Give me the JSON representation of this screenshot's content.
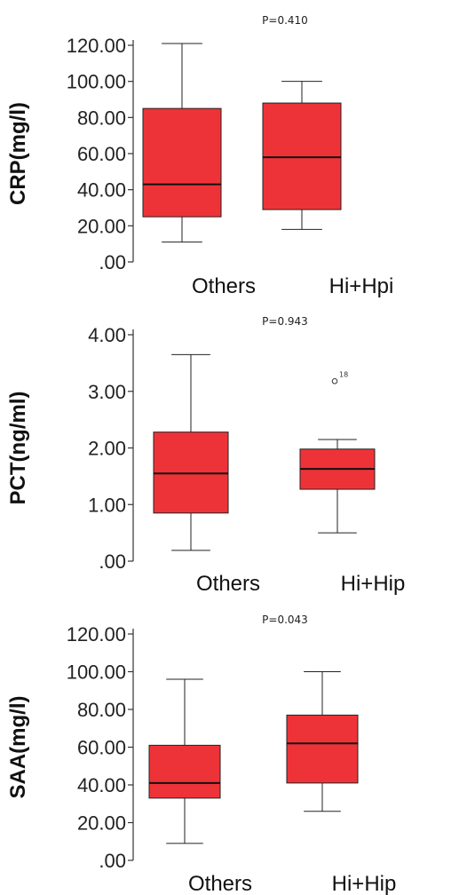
{
  "chart_data": [
    {
      "type": "box",
      "ylabel": "CRP(mg/l)",
      "annotation": "P=0.410",
      "ylim": [
        0,
        120
      ],
      "yticks": [
        ".00",
        "20.00",
        "40.00",
        "60.00",
        "80.00",
        "100.00",
        "120.00"
      ],
      "categories": [
        "Others",
        "Hi+Hpi"
      ],
      "boxes": [
        {
          "min": 11,
          "q1": 25,
          "median": 43,
          "q3": 85,
          "max": 121
        },
        {
          "min": 18,
          "q1": 29,
          "median": 58,
          "q3": 88,
          "max": 100
        }
      ],
      "outliers": [],
      "box_color": "#ee3338"
    },
    {
      "type": "box",
      "ylabel": "PCT(ng/ml)",
      "annotation": "P=0.943",
      "ylim": [
        0,
        4
      ],
      "yticks": [
        ".00",
        "1.00",
        "2.00",
        "3.00",
        "4.00"
      ],
      "categories": [
        "Others",
        "Hi+Hip"
      ],
      "boxes": [
        {
          "min": 0.19,
          "q1": 0.85,
          "median": 1.55,
          "q3": 2.28,
          "max": 3.65
        },
        {
          "min": 0.5,
          "q1": 1.27,
          "median": 1.63,
          "q3": 1.98,
          "max": 2.15
        }
      ],
      "outliers": [
        {
          "box": 1,
          "value": 3.18,
          "label": "18"
        }
      ],
      "box_color": "#ee3338"
    },
    {
      "type": "box",
      "ylabel": "SAA(mg/l)",
      "annotation": "P=0.043",
      "ylim": [
        0,
        120
      ],
      "yticks": [
        ".00",
        "20.00",
        "40.00",
        "60.00",
        "80.00",
        "100.00",
        "120.00"
      ],
      "categories": [
        "Others",
        "Hi+Hip"
      ],
      "boxes": [
        {
          "min": 9,
          "q1": 33,
          "median": 41,
          "q3": 61,
          "max": 96
        },
        {
          "min": 26,
          "q1": 41,
          "median": 62,
          "q3": 77,
          "max": 100
        }
      ],
      "outliers": [],
      "box_color": "#ee3338"
    }
  ]
}
